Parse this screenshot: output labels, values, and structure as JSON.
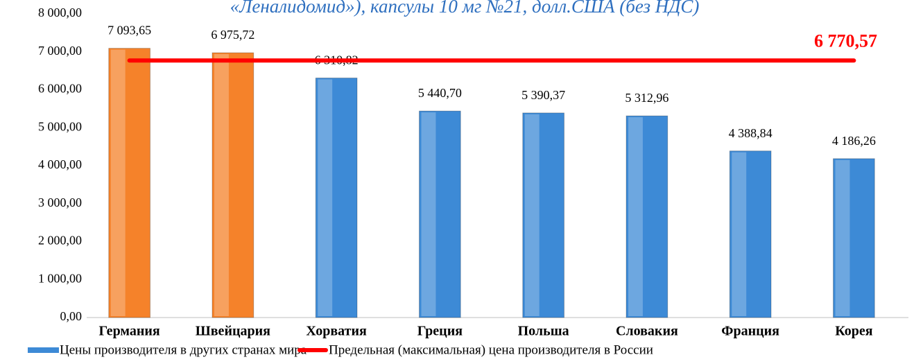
{
  "chart_data": {
    "type": "bar",
    "title": "«Леналидомид»), капсулы 10 мг №21, долл.США (без НДС)",
    "categories": [
      "Германия",
      "Швейцария",
      "Хорватия",
      "Греция",
      "Польша",
      "Словакия",
      "Франция",
      "Корея"
    ],
    "series": [
      {
        "name": "Цены производителя в других странах мира",
        "color": "#3d8ad6",
        "bar_colors": [
          "#f5822a",
          "#f5822a",
          "#3d8ad6",
          "#3d8ad6",
          "#3d8ad6",
          "#3d8ad6",
          "#3d8ad6",
          "#3d8ad6"
        ],
        "values": [
          7093.65,
          6975.72,
          6310.82,
          5440.7,
          5390.37,
          5312.96,
          4388.84,
          4186.26
        ],
        "value_labels": [
          "7 093,65",
          "6 975,72",
          "6 310,82",
          "5 440,70",
          "5 390,37",
          "5 312,96",
          "4 388,84",
          "4 186,26"
        ]
      }
    ],
    "reference_line": {
      "name": "Предельная (максимальная) цена производителя в России",
      "color": "#ff0000",
      "value": 6770.57,
      "value_label": "6 770,57"
    },
    "ylim": [
      0,
      8000
    ],
    "yticks": [
      {
        "value": 0,
        "label": "0,00"
      },
      {
        "value": 1000,
        "label": "1 000,00"
      },
      {
        "value": 2000,
        "label": "2 000,00"
      },
      {
        "value": 3000,
        "label": "3 000,00"
      },
      {
        "value": 4000,
        "label": "4 000,00"
      },
      {
        "value": 5000,
        "label": "5 000,00"
      },
      {
        "value": 6000,
        "label": "6 000,00"
      },
      {
        "value": 7000,
        "label": "7 000,00"
      },
      {
        "value": 8000,
        "label": "8 000,00"
      }
    ]
  }
}
